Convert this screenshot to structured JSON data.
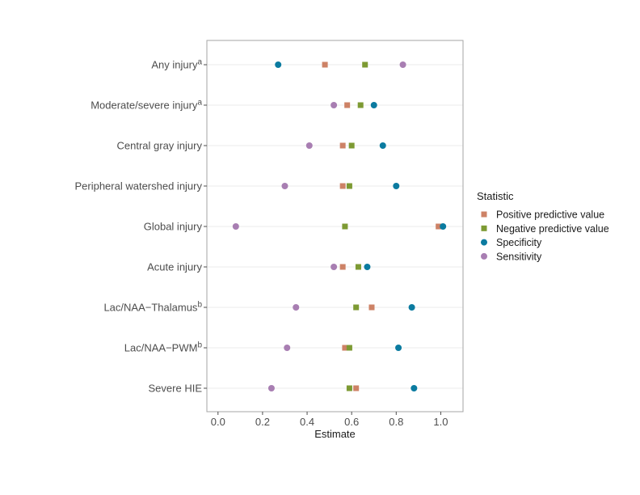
{
  "chart_data": {
    "type": "scatter",
    "xlabel": "Estimate",
    "xlim": [
      -0.05,
      1.1
    ],
    "xticks": [
      0.0,
      0.2,
      0.4,
      0.6,
      0.8,
      1.0
    ],
    "xtick_labels": [
      "0.0",
      "0.2",
      "0.4",
      "0.6",
      "0.8",
      "1.0"
    ],
    "grid": true,
    "legend": {
      "title": "Statistic",
      "position": "right"
    },
    "categories": [
      {
        "label": "Any injury",
        "sup": "a"
      },
      {
        "label": "Moderate/severe injury",
        "sup": "a"
      },
      {
        "label": "Central gray injury",
        "sup": ""
      },
      {
        "label": "Peripheral watershed injury",
        "sup": ""
      },
      {
        "label": "Global injury",
        "sup": ""
      },
      {
        "label": "Acute injury",
        "sup": ""
      },
      {
        "label": "Lac/NAA−Thalamus",
        "sup": "b"
      },
      {
        "label": "Lac/NAA−PWM",
        "sup": "b"
      },
      {
        "label": "Severe HIE",
        "sup": ""
      }
    ],
    "series": [
      {
        "name": "Positive predictive value",
        "shape": "square",
        "color": "#cd8266",
        "values": [
          0.48,
          0.58,
          0.56,
          0.56,
          0.99,
          0.56,
          0.69,
          0.57,
          0.62
        ]
      },
      {
        "name": "Negative predictive value",
        "shape": "square",
        "color": "#7d9a33",
        "values": [
          0.66,
          0.64,
          0.6,
          0.59,
          0.57,
          0.63,
          0.62,
          0.59,
          0.59
        ]
      },
      {
        "name": "Specificity",
        "shape": "circle",
        "color": "#0b7ba0",
        "values": [
          0.27,
          0.7,
          0.74,
          0.8,
          1.01,
          0.67,
          0.87,
          0.81,
          0.88
        ]
      },
      {
        "name": "Sensitivity",
        "shape": "circle",
        "color": "#a87eb2",
        "values": [
          0.83,
          0.52,
          0.41,
          0.3,
          0.08,
          0.52,
          0.35,
          0.31,
          0.24
        ]
      }
    ]
  }
}
